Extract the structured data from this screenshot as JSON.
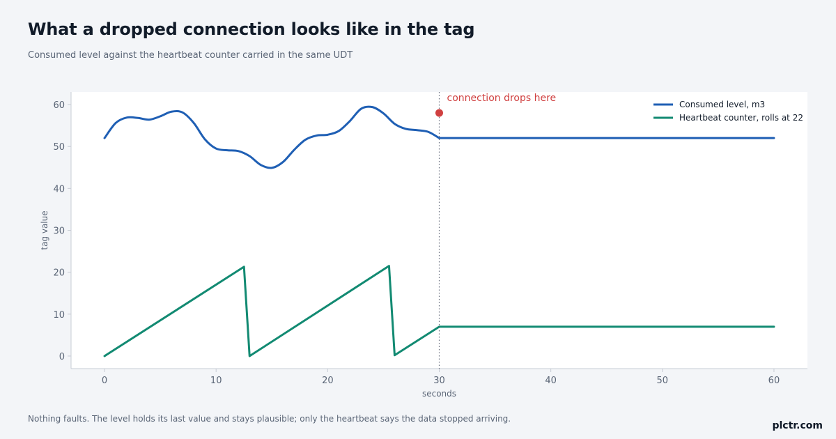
{
  "header": {
    "title": "What a dropped connection looks like in the tag",
    "subtitle": "Consumed level against the heartbeat counter carried in the same UDT"
  },
  "footer": {
    "note": "Nothing faults. The level holds its last value and stays plausible; only the heartbeat says the data stopped arriving.",
    "brand": "plctr.com"
  },
  "chart_data": {
    "type": "line",
    "title": "What a dropped connection looks like in the tag",
    "subtitle": "Consumed level against the heartbeat counter carried in the same UDT",
    "xlabel": "seconds",
    "ylabel": "tag value",
    "xlim": [
      -3,
      63
    ],
    "ylim": [
      -3,
      63
    ],
    "x_ticks": [
      0,
      10,
      20,
      30,
      40,
      50,
      60
    ],
    "y_ticks": [
      0,
      10,
      20,
      30,
      40,
      50,
      60
    ],
    "grid": false,
    "legend_position": "top-right",
    "series": [
      {
        "name": "Consumed level, m3",
        "color": "#1f5fb4",
        "x": [
          0,
          1,
          2,
          3,
          4,
          5,
          6,
          7,
          8,
          9,
          10,
          11,
          12,
          13,
          14,
          15,
          16,
          17,
          18,
          19,
          20,
          21,
          22,
          23,
          24,
          25,
          26,
          27,
          28,
          29,
          30,
          60
        ],
        "y": [
          52,
          55.6,
          56.9,
          56.8,
          56.4,
          57.2,
          58.3,
          58.1,
          55.6,
          51.7,
          49.5,
          49.1,
          48.9,
          47.7,
          45.6,
          44.9,
          46.3,
          49.2,
          51.6,
          52.6,
          52.8,
          53.7,
          56.1,
          59,
          59.4,
          57.9,
          55.4,
          54.2,
          53.9,
          53.5,
          52,
          52
        ]
      },
      {
        "name": "Heartbeat counter, rolls at 22",
        "color": "#128a72",
        "x": [
          0,
          12.5,
          13,
          25.5,
          26,
          30,
          60
        ],
        "y": [
          0,
          21.3,
          0,
          21.5,
          0.2,
          7,
          7
        ]
      }
    ],
    "annotations": [
      {
        "text": "connection drops here",
        "x": 30,
        "y": 58,
        "color": "#d04040"
      }
    ],
    "reference_lines": [
      {
        "axis": "x",
        "value": 30,
        "style": "dotted"
      }
    ]
  }
}
